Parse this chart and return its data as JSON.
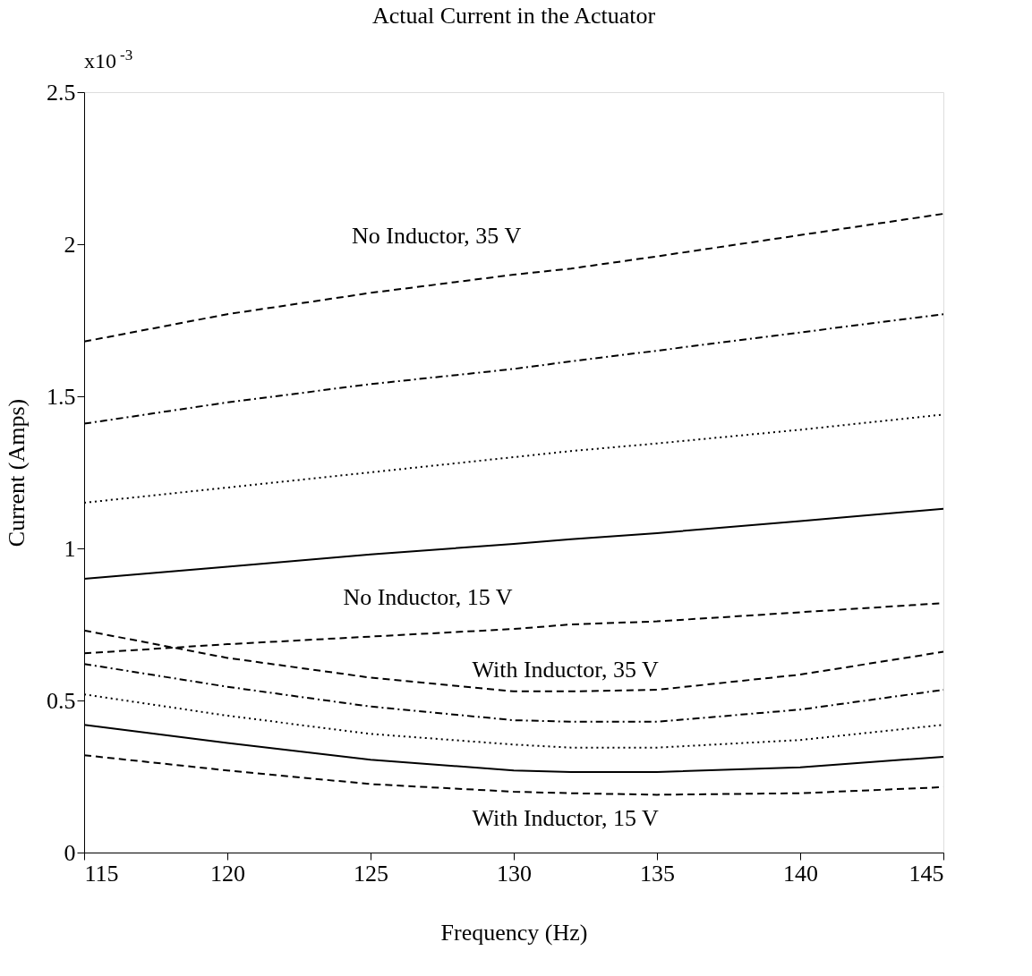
{
  "chart_data": {
    "type": "line",
    "title": "Actual Current in the Actuator",
    "xlabel": "Frequency (Hz)",
    "ylabel": "Current (Amps)",
    "x": [
      115,
      120,
      125,
      130,
      132,
      135,
      140,
      145
    ],
    "series": [
      {
        "color": "#000000",
        "line_style": "dashed",
        "values": [
          1.68,
          1.77,
          1.84,
          1.9,
          1.92,
          1.96,
          2.03,
          2.1
        ]
      },
      {
        "color": "#000000",
        "line_style": "dashdot",
        "values": [
          1.41,
          1.48,
          1.54,
          1.59,
          1.615,
          1.65,
          1.71,
          1.77
        ]
      },
      {
        "color": "#000000",
        "line_style": "dotted",
        "values": [
          1.15,
          1.2,
          1.25,
          1.3,
          1.32,
          1.345,
          1.39,
          1.44
        ]
      },
      {
        "color": "#000000",
        "line_style": "solid",
        "values": [
          0.9,
          0.94,
          0.98,
          1.015,
          1.03,
          1.05,
          1.09,
          1.13
        ]
      },
      {
        "color": "#000000",
        "line_style": "dashed",
        "values": [
          0.655,
          0.685,
          0.71,
          0.735,
          0.75,
          0.76,
          0.79,
          0.82
        ]
      },
      {
        "color": "#000000",
        "line_style": "dashed",
        "values": [
          0.73,
          0.64,
          0.575,
          0.53,
          0.53,
          0.535,
          0.585,
          0.66
        ]
      },
      {
        "color": "#000000",
        "line_style": "dashdot",
        "values": [
          0.62,
          0.545,
          0.48,
          0.435,
          0.43,
          0.43,
          0.47,
          0.535
        ]
      },
      {
        "color": "#000000",
        "line_style": "dotted",
        "values": [
          0.52,
          0.45,
          0.39,
          0.355,
          0.345,
          0.345,
          0.37,
          0.42
        ]
      },
      {
        "color": "#000000",
        "line_style": "solid",
        "values": [
          0.42,
          0.36,
          0.305,
          0.27,
          0.265,
          0.265,
          0.28,
          0.315
        ]
      },
      {
        "color": "#000000",
        "line_style": "dashed",
        "values": [
          0.32,
          0.27,
          0.225,
          0.2,
          0.195,
          0.19,
          0.195,
          0.215
        ]
      }
    ],
    "xlim": [
      115,
      145
    ],
    "xticks": [
      115,
      120,
      125,
      130,
      135,
      140,
      145
    ],
    "ylim": [
      0,
      2.5
    ],
    "yticks": [
      0,
      0.5,
      1,
      1.5,
      2,
      2.5
    ],
    "grid": false,
    "marker": "none",
    "annotations": [
      "x10$^{-3}$",
      "No Inductor, 35 V",
      "No Inductor, 15 V",
      "With Inductor, 35 V",
      "With Inductor, 15 V"
    ]
  }
}
